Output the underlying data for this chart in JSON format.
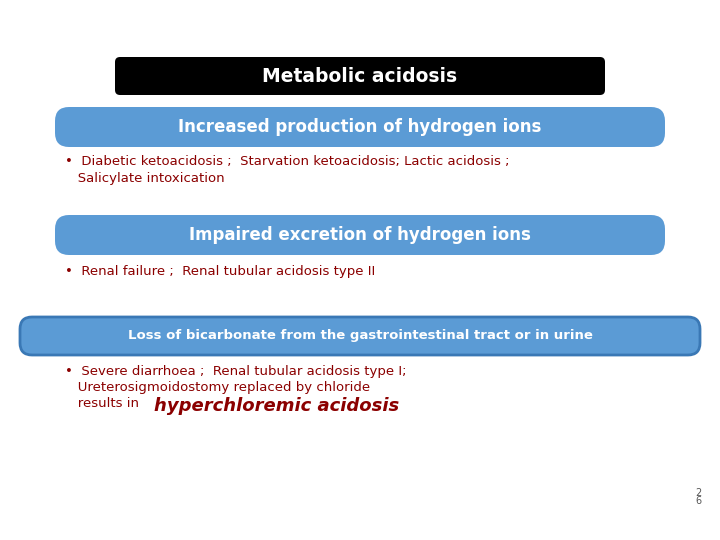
{
  "title": "Metabolic acidosis",
  "title_bg": "#000000",
  "title_color": "#ffffff",
  "header1": "Increased production of hydrogen ions",
  "header2": "Impaired excretion of hydrogen ions",
  "header3": "Loss of bicarbonate from the gastrointestinal tract or in urine",
  "header_bg": "#5b9bd5",
  "header_color": "#ffffff",
  "bullet_color": "#8b0000",
  "bullet1_line1": "•  Diabetic ketoacidosis ;  Starvation ketoacidosis; Lactic acidosis ;",
  "bullet1_line2": "   Salicylate intoxication",
  "bullet2": "•  Renal failure ;  Renal tubular acidosis type II",
  "bullet3_line1": "•  Severe diarrhoea ;  Renal tubular acidosis type I;",
  "bullet3_line2": "   Ureterosigmoidostomy replaced by chloride",
  "bullet3_line3_pre": "   results in ",
  "bullet3_bold": "hyperchloremic acidosis",
  "page_num_top": "2",
  "page_num_bot": "6",
  "bg_color": "#ffffff"
}
